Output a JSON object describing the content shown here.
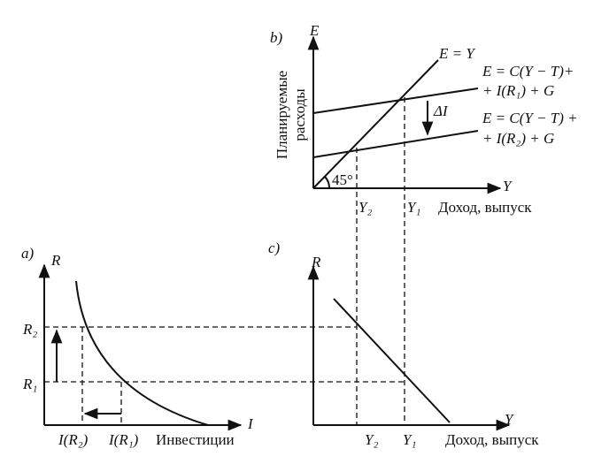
{
  "panel_b": {
    "label": "b)",
    "y_axis": "E",
    "y_title": [
      "Планируемые",
      "расходы"
    ],
    "line_45": "E = Y",
    "upper_line": [
      "E = C(Y − T)+",
      "+ I(R₁) + G"
    ],
    "lower_line": [
      "E = C(Y − T) +",
      "+ I(R₂) + G"
    ],
    "shift": "ΔI",
    "angle": "45°",
    "x_axis": "Y",
    "y2": "Y₂",
    "y1": "Y₁",
    "x_title": "Доход, выпуск"
  },
  "panel_a": {
    "label": "a)",
    "y_axis": "R",
    "r2": "R₂",
    "r1": "R₁",
    "x_axis": "I",
    "i_r2": "I(R₂)",
    "i_r1": "I(R₁)",
    "x_title": "Инвестиции"
  },
  "panel_c": {
    "label": "c)",
    "y_axis": "R",
    "x_axis": "Y",
    "y2": "Y₂",
    "y1": "Y₁",
    "x_title": "Доход, выпуск"
  }
}
